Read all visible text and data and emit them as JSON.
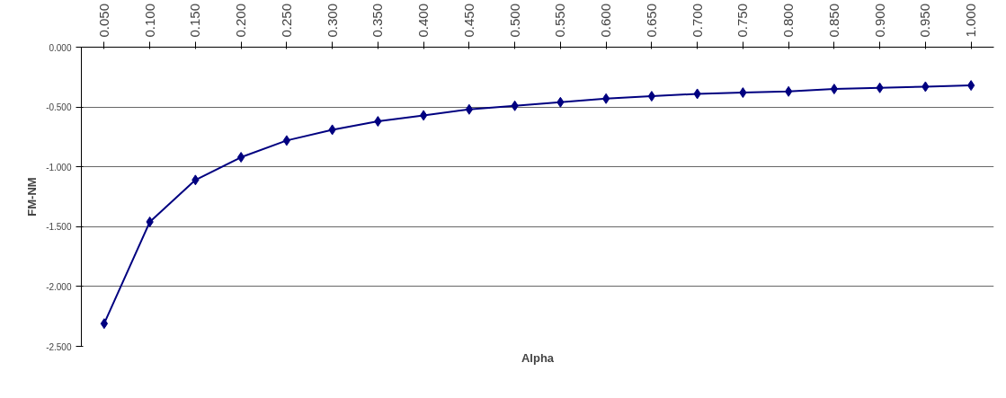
{
  "chart_data": {
    "type": "line",
    "xlabel": "Alpha",
    "ylabel": "FM-NM",
    "categories": [
      "0.050",
      "0.100",
      "0.150",
      "0.200",
      "0.250",
      "0.300",
      "0.350",
      "0.400",
      "0.450",
      "0.500",
      "0.550",
      "0.600",
      "0.650",
      "0.700",
      "0.750",
      "0.800",
      "0.850",
      "0.900",
      "0.950",
      "1.000"
    ],
    "series": [
      {
        "color": "#000080",
        "values": [
          -2.31,
          -1.46,
          -1.11,
          -0.92,
          -0.78,
          -0.69,
          -0.62,
          -0.57,
          -0.52,
          -0.49,
          -0.46,
          -0.43,
          -0.41,
          -0.39,
          -0.38,
          -0.37,
          -0.35,
          -0.34,
          -0.33,
          -0.32
        ]
      }
    ],
    "ylim": [
      -2.5,
      0
    ],
    "yticks": [
      {
        "value": -2.5,
        "label": "-2.500"
      },
      {
        "value": -2.0,
        "label": "-2.000"
      },
      {
        "value": -1.5,
        "label": "-1.500"
      },
      {
        "value": -1.0,
        "label": "-1.000"
      },
      {
        "value": -0.5,
        "label": "-0.500"
      },
      {
        "value": 0,
        "label": "0.000"
      }
    ],
    "grid": "y",
    "marker": "diamond",
    "line_style": "solid"
  }
}
